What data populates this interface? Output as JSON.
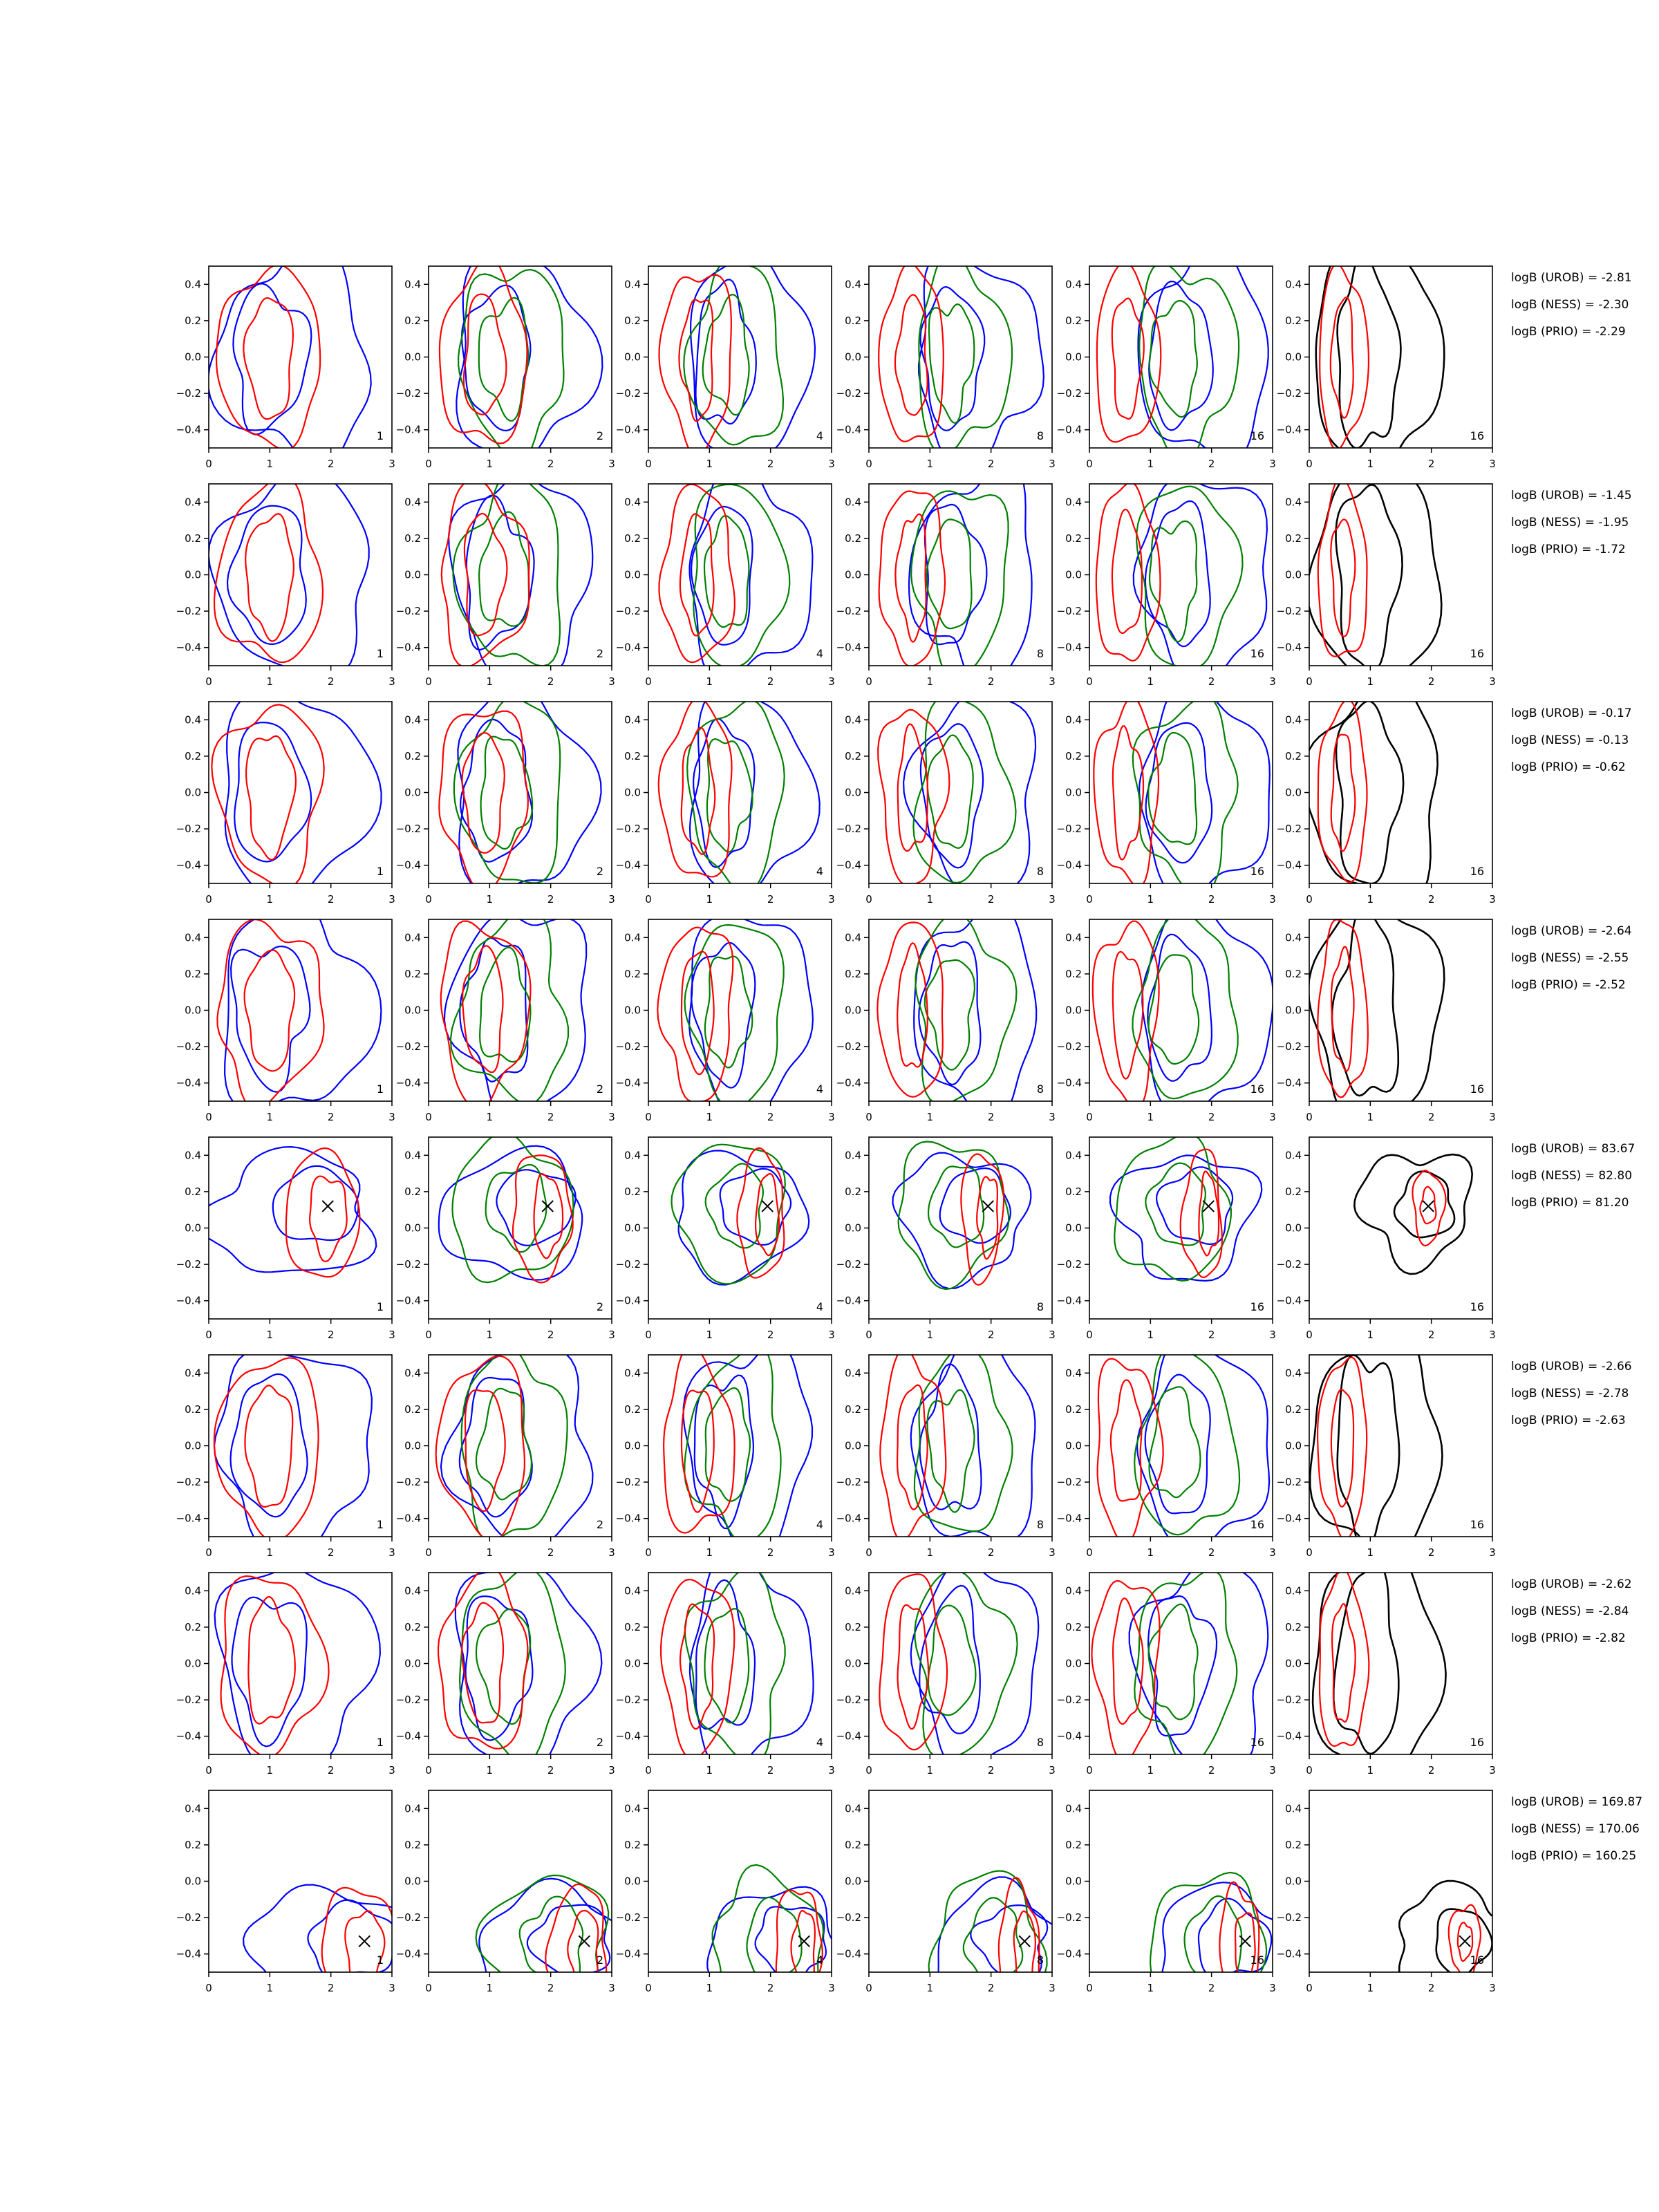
{
  "chart_data": {
    "type": "contour-grid",
    "xlim": [
      0,
      3
    ],
    "ylim": [
      -0.5,
      0.5
    ],
    "x_ticks": [
      "0",
      "1",
      "2",
      "3"
    ],
    "y_ticks": [
      "0.4",
      "0.2",
      "0.0",
      "−0.2",
      "−0.4"
    ],
    "column_labels": [
      "1",
      "2",
      "4",
      "8",
      "16",
      "16"
    ],
    "series_colors": {
      "red": "#ff0000",
      "blue": "#0000ff",
      "green": "#008000",
      "black": "#000000"
    },
    "rows": [
      {
        "logB": [
          "logB (UROB) = -2.81",
          "logB (NESS) = -2.30",
          "logB (PRIO) = -2.29"
        ],
        "center": [
          1.0,
          0.0
        ],
        "marker": null
      },
      {
        "logB": [
          "logB (UROB) = -1.45",
          "logB (NESS) = -1.95",
          "logB (PRIO) = -1.72"
        ],
        "center": [
          1.0,
          0.0
        ],
        "marker": null
      },
      {
        "logB": [
          "logB (UROB) = -0.17",
          "logB (NESS) = -0.13",
          "logB (PRIO) = -0.62"
        ],
        "center": [
          1.0,
          0.0
        ],
        "marker": null
      },
      {
        "logB": [
          "logB (UROB) = -2.64",
          "logB (NESS) = -2.55",
          "logB (PRIO) = -2.52"
        ],
        "center": [
          1.0,
          0.0
        ],
        "marker": null
      },
      {
        "logB": [
          "logB (UROB) = 83.67",
          "logB (NESS) = 82.80",
          "logB (PRIO) = 81.20"
        ],
        "center": [
          1.95,
          0.12
        ],
        "marker": [
          1.95,
          0.12
        ]
      },
      {
        "logB": [
          "logB (UROB) = -2.66",
          "logB (NESS) = -2.78",
          "logB (PRIO) = -2.63"
        ],
        "center": [
          1.0,
          0.0
        ],
        "marker": null
      },
      {
        "logB": [
          "logB (UROB) = -2.62",
          "logB (NESS) = -2.84",
          "logB (PRIO) = -2.82"
        ],
        "center": [
          1.0,
          0.0
        ],
        "marker": null
      },
      {
        "logB": [
          "logB (UROB) = 169.87",
          "logB (NESS) = 170.06",
          "logB (PRIO) = 160.25"
        ],
        "center": [
          2.55,
          -0.33
        ],
        "marker": [
          2.55,
          -0.33
        ]
      }
    ]
  }
}
